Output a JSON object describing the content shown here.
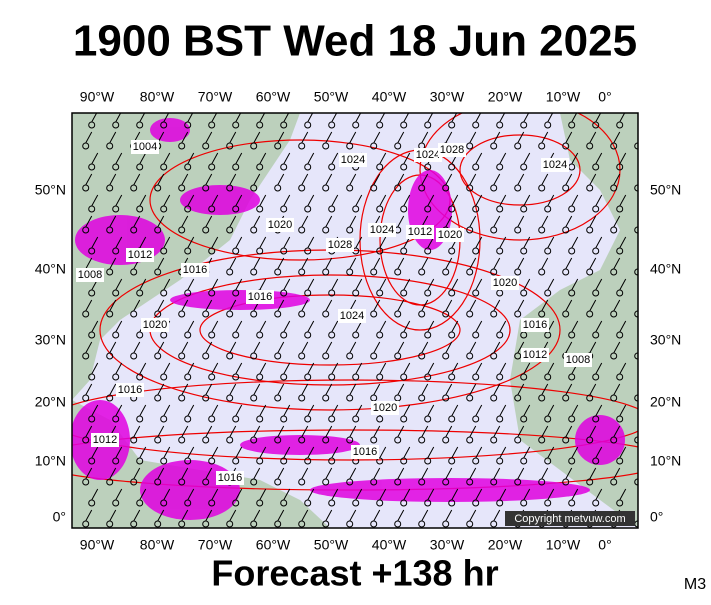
{
  "header": {
    "title": "1900 BST Wed 18 Jun 2025"
  },
  "map": {
    "lon_labels": [
      "90°W",
      "80°W",
      "70°W",
      "60°W",
      "50°W",
      "40°W",
      "30°W",
      "20°W",
      "10°W",
      "0°"
    ],
    "lat_labels": [
      "50°N",
      "40°N",
      "30°N",
      "20°N",
      "10°N",
      "0°"
    ],
    "isobar_labels": [
      "1004",
      "1024",
      "1024",
      "1028",
      "1020",
      "1028",
      "1024",
      "1012",
      "1020",
      "1012",
      "1008",
      "1016",
      "1016",
      "1024",
      "1020",
      "1020",
      "1016",
      "1012",
      "1008",
      "1016",
      "1020",
      "1012",
      "1016",
      "1016",
      "1024"
    ],
    "copyright": "Copyright metvuw.com"
  },
  "footer": {
    "forecast": "Forecast +138 hr",
    "model": "M3"
  }
}
